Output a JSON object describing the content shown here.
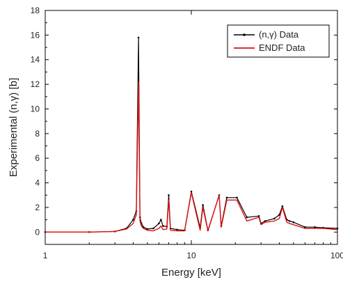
{
  "chart_data": {
    "type": "line",
    "title": "",
    "xlabel": "Energy [keV]",
    "ylabel": "Experimental (n,γ) [b]",
    "xscale": "log",
    "xlim": [
      1,
      100
    ],
    "ylim": [
      -1,
      18
    ],
    "x_ticks": [
      1,
      10,
      100
    ],
    "x_tick_labels": [
      "1",
      "10",
      "100"
    ],
    "y_ticks": [
      0,
      2,
      4,
      6,
      8,
      10,
      12,
      14,
      16,
      18
    ],
    "y_tick_labels": [
      "0",
      "2",
      "4",
      "6",
      "8",
      "10",
      "12",
      "14",
      "16",
      "18"
    ],
    "grid": false,
    "legend_position": "top-right",
    "series": [
      {
        "name": "(n,γ) Data",
        "color": "#000000",
        "style": "line with markers and error bars",
        "x": [
          1.0,
          2.0,
          3.0,
          3.6,
          4.0,
          4.2,
          4.35,
          4.45,
          4.55,
          4.7,
          5.0,
          5.5,
          6.0,
          6.2,
          6.4,
          6.8,
          7.0,
          7.2,
          8.0,
          9.0,
          10.0,
          11.5,
          12.0,
          13.0,
          15.5,
          16.0,
          17.5,
          20.5,
          24.0,
          29.0,
          30.0,
          32.0,
          37.0,
          40.0,
          42.0,
          45.0,
          47.0,
          50.0,
          60.0,
          70.0,
          80.0,
          100.0
        ],
        "y": [
          0.0,
          0.0,
          0.05,
          0.3,
          1.0,
          1.7,
          15.8,
          1.2,
          0.7,
          0.4,
          0.25,
          0.3,
          0.7,
          1.0,
          0.5,
          0.45,
          3.0,
          0.3,
          0.2,
          0.15,
          3.3,
          0.35,
          2.2,
          0.15,
          3.0,
          0.5,
          2.8,
          2.8,
          1.2,
          1.3,
          0.7,
          0.9,
          1.1,
          1.4,
          2.1,
          1.0,
          0.9,
          0.8,
          0.4,
          0.4,
          0.35,
          0.3
        ]
      },
      {
        "name": "ENDF Data",
        "color": "#dd1111",
        "style": "line",
        "x": [
          1.0,
          2.0,
          3.0,
          3.6,
          4.0,
          4.2,
          4.35,
          4.45,
          4.55,
          4.7,
          5.0,
          5.5,
          6.0,
          6.2,
          6.4,
          6.8,
          7.0,
          7.2,
          8.0,
          9.0,
          10.0,
          11.5,
          12.0,
          13.0,
          15.5,
          16.0,
          17.5,
          20.5,
          24.0,
          29.0,
          30.0,
          32.0,
          37.0,
          40.0,
          42.0,
          45.0,
          47.0,
          50.0,
          60.0,
          70.0,
          80.0,
          100.0
        ],
        "y": [
          0.0,
          0.0,
          0.05,
          0.25,
          0.7,
          1.4,
          12.2,
          0.9,
          0.5,
          0.3,
          0.15,
          0.1,
          0.3,
          0.5,
          0.2,
          0.25,
          2.6,
          0.15,
          0.1,
          0.1,
          3.2,
          0.15,
          2.0,
          0.1,
          3.0,
          0.4,
          2.6,
          2.6,
          0.9,
          1.2,
          0.6,
          0.8,
          0.9,
          1.1,
          2.0,
          0.8,
          0.7,
          0.6,
          0.3,
          0.3,
          0.3,
          0.2
        ]
      }
    ]
  }
}
